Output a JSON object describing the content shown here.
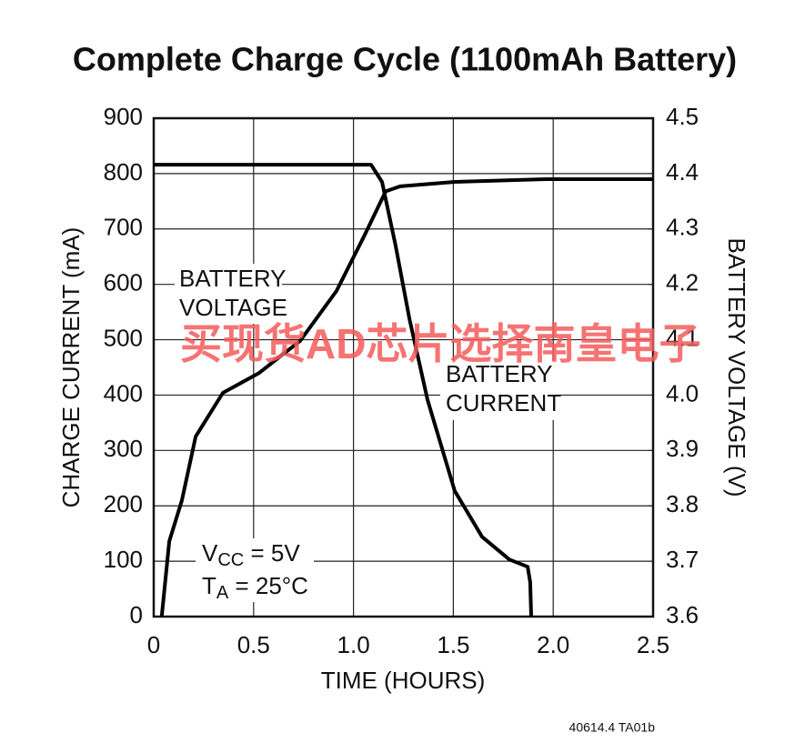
{
  "chart_data": {
    "type": "line",
    "title": "Complete Charge Cycle (1100mAh Battery)",
    "x_label": "TIME (HOURS)",
    "y_label": "CHARGE CURRENT (mA)",
    "y2_label": "BATTERY VOLTAGE (V)",
    "xlim": [
      0,
      2.5
    ],
    "xticks": [
      0,
      0.5,
      {
        "value": 1,
        "label": "1.0"
      },
      1.5,
      {
        "value": 2,
        "label": "2.0"
      },
      2.5
    ],
    "ylim": [
      0,
      900
    ],
    "yticks": [
      0,
      100,
      200,
      300,
      400,
      500,
      600,
      700,
      800,
      900
    ],
    "y2lim": [
      3.6,
      4.5
    ],
    "y2ticks": [
      3.6,
      3.7,
      3.8,
      3.9,
      {
        "value": 4,
        "label": "4.0"
      },
      4.1,
      4.2,
      4.3,
      4.4,
      4.5
    ],
    "grid": true,
    "series": [
      {
        "name": "BATTERY VOLTAGE",
        "color": "#000000",
        "axis": "y2",
        "x": [
          0.04,
          0.078,
          0.141,
          0.21,
          0.346,
          0.528,
          0.733,
          0.915,
          1.052,
          1.161,
          1.234,
          1.507,
          1.963,
          2.5
        ],
        "values": [
          3.6,
          3.736,
          3.81,
          3.925,
          4.004,
          4.04,
          4.098,
          4.188,
          4.286,
          4.368,
          4.377,
          4.385,
          4.39,
          4.39
        ]
      },
      {
        "name": "BATTERY CURRENT",
        "color": "#000000",
        "x": [
          0,
          1.088,
          1.143,
          1.211,
          1.28,
          1.371,
          1.507,
          1.644,
          1.781,
          1.872,
          1.885,
          1.89
        ],
        "values": [
          816,
          816,
          785,
          670,
          538,
          391,
          227,
          144,
          103,
          90,
          62,
          0
        ]
      }
    ],
    "conditions": [
      {
        "main": "V",
        "sub": "CC",
        "rest": " = 5V"
      },
      {
        "main": "T",
        "sub": "A",
        "rest": " = 25°C"
      }
    ],
    "watermark": "买现货AD芯片选择南皇电子",
    "footnote": "40614.4 TA01b"
  }
}
